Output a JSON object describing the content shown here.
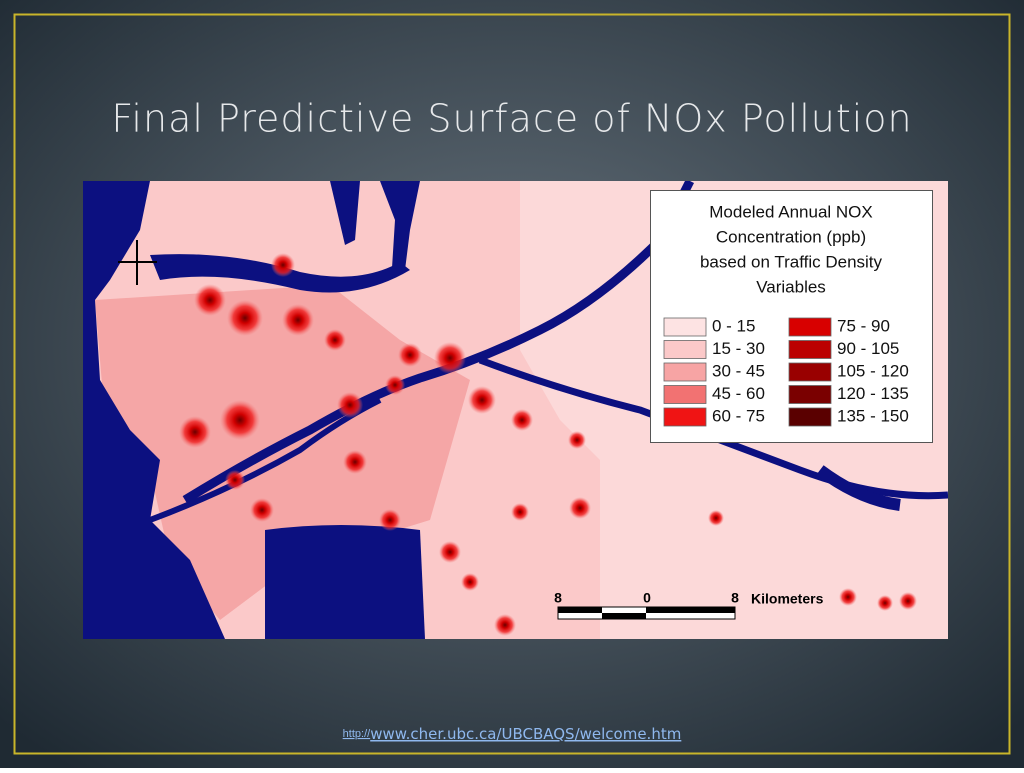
{
  "title": "Final Predictive Surface of NOx Pollution",
  "legend": {
    "title": [
      "Modeled Annual NOX",
      "Concentration (ppb)",
      "based on Traffic Density",
      "Variables"
    ],
    "items": [
      {
        "label": "0 - 15",
        "color": "#fde3e3"
      },
      {
        "label": "15 - 30",
        "color": "#fbc9c9"
      },
      {
        "label": "30 - 45",
        "color": "#f7a4a4"
      },
      {
        "label": "45 - 60",
        "color": "#f27272"
      },
      {
        "label": "60 - 75",
        "color": "#f01414"
      },
      {
        "label": "75 - 90",
        "color": "#d80000"
      },
      {
        "label": "90 - 105",
        "color": "#bb0000"
      },
      {
        "label": "105 - 120",
        "color": "#990000"
      },
      {
        "label": "120 - 135",
        "color": "#7a0000"
      },
      {
        "label": "135 - 150",
        "color": "#5a0000"
      }
    ]
  },
  "scale_bar": {
    "labels": [
      "8",
      "0",
      "8"
    ],
    "unit": "Kilometers"
  },
  "source_link": {
    "prefix": "http://",
    "text": "www.cher.ubc.ca/UBCBAQS/welcome.htm"
  }
}
